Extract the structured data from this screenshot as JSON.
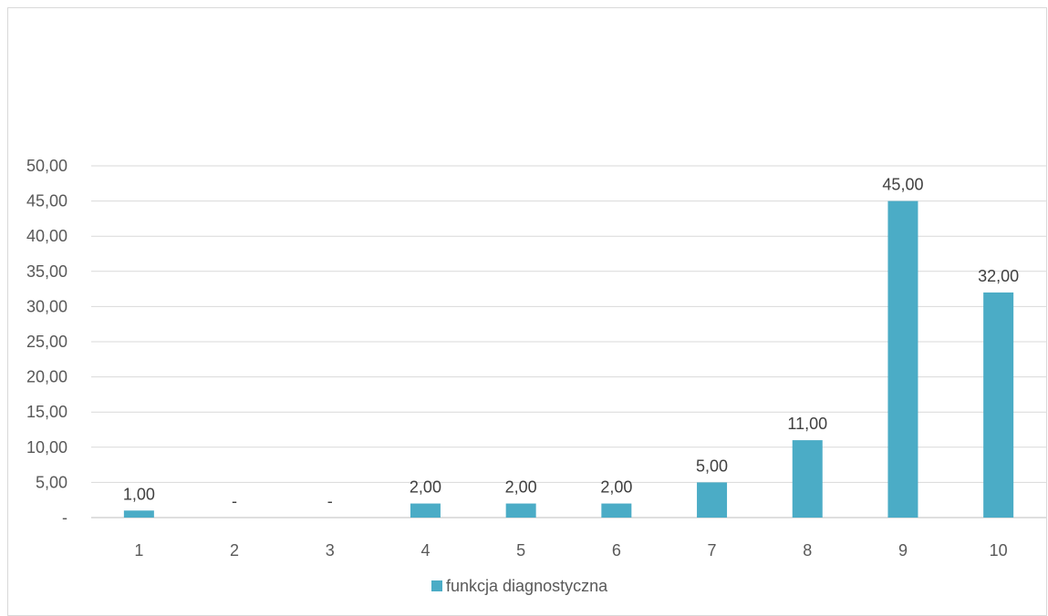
{
  "chart_data": {
    "type": "bar",
    "categories": [
      "1",
      "2",
      "3",
      "4",
      "5",
      "6",
      "7",
      "8",
      "9",
      "10"
    ],
    "series": [
      {
        "name": "funkcja diagnostyczna",
        "values": [
          1,
          0,
          0,
          2,
          2,
          2,
          5,
          11,
          45,
          32
        ],
        "data_labels": [
          "1,00",
          "-",
          "-",
          "2,00",
          "2,00",
          "2,00",
          "5,00",
          "11,00",
          "45,00",
          "32,00"
        ],
        "color": "#4bacc6"
      }
    ],
    "y_ticks": [
      "-",
      "5,00",
      "10,00",
      "15,00",
      "20,00",
      "25,00",
      "30,00",
      "35,00",
      "40,00",
      "45,00",
      "50,00"
    ],
    "ylim": [
      0,
      50
    ],
    "grid": true,
    "legend_position": "bottom",
    "title": "",
    "xlabel": "",
    "ylabel": ""
  }
}
